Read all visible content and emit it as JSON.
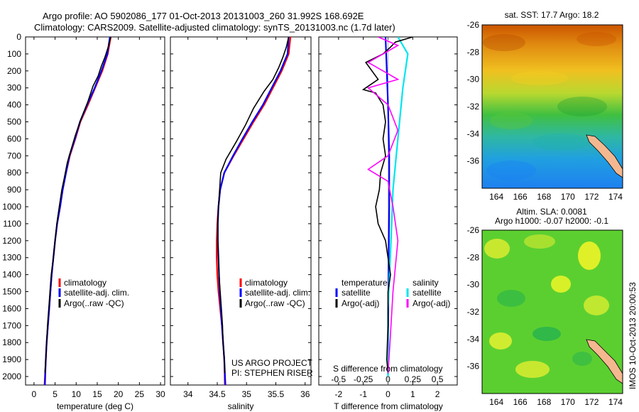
{
  "header": {
    "line1": "Argo profile: AO 5902086_177 01-Oct-2013 20131003_260 31.992S 168.692E",
    "line2": "Climatology: CARS2009. Satellite-adjusted climatology: synTS_20131003.nc (1.7d later)"
  },
  "side_label": "IMOS 10-Oct-2013 20:00:53",
  "credits": {
    "line1": "US ARGO PROJECT",
    "line2": "PI: STEPHEN RISER"
  },
  "colors": {
    "climatology": "#ff0000",
    "satellite": "#0000ff",
    "argo": "#000000",
    "sat_salinity": "#00e5ee",
    "argo_salinity": "#ff00ff"
  },
  "chart_data": [
    {
      "type": "line",
      "xlabel": "temperature (deg C)",
      "ylabel": "",
      "xlim": [
        -2,
        31
      ],
      "ylim": [
        2050,
        0
      ],
      "xticks": [
        "0",
        "5",
        "10",
        "15",
        "20",
        "25",
        "30"
      ],
      "yticks": [
        "0",
        "100",
        "200",
        "300",
        "400",
        "500",
        "600",
        "700",
        "800",
        "900",
        "1000",
        "1100",
        "1200",
        "1300",
        "1400",
        "1500",
        "1600",
        "1700",
        "1800",
        "1900",
        "2000"
      ],
      "legend": [
        "climatology",
        "satellite-adj. clim.",
        "Argo(..raw -QC)"
      ],
      "legend_position": "lower-center",
      "series": [
        {
          "name": "climatology",
          "color": "#ff0000",
          "points": [
            [
              18.2,
              0
            ],
            [
              17.5,
              100
            ],
            [
              16.2,
              200
            ],
            [
              14.5,
              300
            ],
            [
              12.8,
              400
            ],
            [
              11.0,
              500
            ],
            [
              9.8,
              600
            ],
            [
              8.5,
              700
            ],
            [
              7.6,
              800
            ],
            [
              6.8,
              900
            ],
            [
              6.2,
              1000
            ],
            [
              5.5,
              1100
            ],
            [
              5.0,
              1200
            ],
            [
              4.6,
              1300
            ],
            [
              4.2,
              1400
            ],
            [
              3.9,
              1500
            ],
            [
              3.6,
              1600
            ],
            [
              3.3,
              1700
            ],
            [
              3.0,
              1800
            ],
            [
              2.8,
              1900
            ],
            [
              2.5,
              2050
            ]
          ]
        },
        {
          "name": "satellite-adj. clim.",
          "color": "#0000ff",
          "points": [
            [
              18.0,
              0
            ],
            [
              17.4,
              100
            ],
            [
              16.0,
              200
            ],
            [
              14.4,
              300
            ],
            [
              12.6,
              400
            ],
            [
              10.9,
              500
            ],
            [
              9.7,
              600
            ],
            [
              8.4,
              700
            ],
            [
              7.6,
              800
            ],
            [
              6.8,
              900
            ],
            [
              6.2,
              1000
            ],
            [
              5.5,
              1100
            ],
            [
              5.0,
              1200
            ],
            [
              4.6,
              1300
            ],
            [
              4.2,
              1400
            ],
            [
              3.9,
              1500
            ],
            [
              3.6,
              1600
            ],
            [
              3.3,
              1700
            ],
            [
              3.0,
              1800
            ],
            [
              2.8,
              1900
            ],
            [
              2.6,
              2050
            ]
          ]
        },
        {
          "name": "Argo(..raw -QC)",
          "color": "#000000",
          "points": [
            [
              18.2,
              0
            ],
            [
              17.6,
              60
            ],
            [
              16.8,
              120
            ],
            [
              16.0,
              170
            ],
            [
              15.2,
              230
            ],
            [
              14.0,
              290
            ],
            [
              12.8,
              380
            ],
            [
              11.2,
              480
            ],
            [
              9.8,
              580
            ],
            [
              8.6,
              680
            ],
            [
              7.9,
              740
            ],
            [
              7.2,
              830
            ],
            [
              6.6,
              900
            ],
            [
              6.0,
              1000
            ],
            [
              5.4,
              1100
            ],
            [
              5.0,
              1200
            ],
            [
              4.6,
              1300
            ],
            [
              4.1,
              1400
            ],
            [
              3.8,
              1500
            ],
            [
              3.5,
              1600
            ],
            [
              3.2,
              1700
            ],
            [
              3.0,
              1800
            ],
            [
              2.8,
              1900
            ],
            [
              2.6,
              1980
            ]
          ]
        }
      ]
    },
    {
      "type": "line",
      "xlabel": "salinity",
      "xlim": [
        33.7,
        36.1
      ],
      "ylim": [
        2050,
        0
      ],
      "xticks": [
        "34",
        "34.5",
        "35",
        "35.5",
        "36"
      ],
      "legend": [
        "climatology",
        "satellite-adj. clim.",
        "Argo(..raw -QC)"
      ],
      "legend_position": "lower-center",
      "series": [
        {
          "name": "climatology",
          "color": "#ff0000",
          "points": [
            [
              35.75,
              0
            ],
            [
              35.72,
              100
            ],
            [
              35.6,
              200
            ],
            [
              35.45,
              300
            ],
            [
              35.3,
              400
            ],
            [
              35.12,
              500
            ],
            [
              34.95,
              600
            ],
            [
              34.78,
              700
            ],
            [
              34.62,
              800
            ],
            [
              34.55,
              900
            ],
            [
              34.52,
              1000
            ],
            [
              34.5,
              1100
            ],
            [
              34.49,
              1200
            ],
            [
              34.49,
              1300
            ],
            [
              34.5,
              1400
            ],
            [
              34.52,
              1500
            ],
            [
              34.55,
              1600
            ],
            [
              34.58,
              1700
            ],
            [
              34.6,
              1800
            ],
            [
              34.62,
              1900
            ],
            [
              34.63,
              2050
            ]
          ]
        },
        {
          "name": "satellite-adj. clim.",
          "color": "#0000ff",
          "points": [
            [
              35.72,
              0
            ],
            [
              35.7,
              100
            ],
            [
              35.58,
              200
            ],
            [
              35.43,
              300
            ],
            [
              35.28,
              400
            ],
            [
              35.1,
              500
            ],
            [
              34.93,
              600
            ],
            [
              34.77,
              700
            ],
            [
              34.62,
              800
            ],
            [
              34.55,
              900
            ],
            [
              34.52,
              1000
            ],
            [
              34.51,
              1100
            ],
            [
              34.51,
              1200
            ],
            [
              34.52,
              1300
            ],
            [
              34.53,
              1400
            ],
            [
              34.54,
              1500
            ],
            [
              34.56,
              1600
            ],
            [
              34.58,
              1700
            ],
            [
              34.6,
              1800
            ],
            [
              34.62,
              1900
            ],
            [
              34.64,
              2050
            ]
          ]
        },
        {
          "name": "Argo(..raw -QC)",
          "color": "#000000",
          "points": [
            [
              35.72,
              0
            ],
            [
              35.68,
              60
            ],
            [
              35.62,
              120
            ],
            [
              35.55,
              180
            ],
            [
              35.45,
              250
            ],
            [
              35.3,
              320
            ],
            [
              35.12,
              420
            ],
            [
              34.98,
              520
            ],
            [
              34.82,
              620
            ],
            [
              34.65,
              720
            ],
            [
              34.56,
              800
            ],
            [
              34.54,
              900
            ],
            [
              34.52,
              1000
            ],
            [
              34.51,
              1100
            ],
            [
              34.51,
              1200
            ],
            [
              34.52,
              1300
            ],
            [
              34.53,
              1400
            ],
            [
              34.55,
              1500
            ],
            [
              34.57,
              1600
            ],
            [
              34.59,
              1700
            ],
            [
              34.6,
              1800
            ],
            [
              34.62,
              1900
            ],
            [
              34.63,
              1980
            ]
          ]
        }
      ]
    },
    {
      "type": "line",
      "xlabel": "T difference from climatology",
      "top_axis_label": "S difference from climatology",
      "xlim": [
        -2.8,
        2.8
      ],
      "ylim": [
        2050,
        0
      ],
      "xticks": [
        "-2",
        "-1",
        "0",
        "1",
        "2"
      ],
      "top_xticks": [
        "-0.5",
        "-0.25",
        "0",
        "0.25",
        "0.5"
      ],
      "legend": {
        "temperature_title": "temperature",
        "salinity_title": "salinity",
        "satellite": "satellite",
        "argo_t": "Argo(-adj)",
        "argo_s": "Argo(-adj)"
      },
      "series": [
        {
          "name": "satellite",
          "group": "temperature",
          "color": "#0000ff",
          "points": [
            [
              -0.1,
              0
            ],
            [
              -0.05,
              200
            ],
            [
              0,
              400
            ],
            [
              0.05,
              700
            ],
            [
              0.05,
              1000
            ],
            [
              0.02,
              1400
            ],
            [
              0,
              2000
            ]
          ]
        },
        {
          "name": "satellite",
          "group": "salinity",
          "color": "#00e5ee",
          "points": [
            [
              0.1,
              0
            ],
            [
              0.2,
              100
            ],
            [
              0.15,
              300
            ],
            [
              0.1,
              600
            ],
            [
              0.05,
              900
            ],
            [
              0.03,
              1200
            ],
            [
              0,
              1600
            ],
            [
              0,
              2000
            ]
          ]
        },
        {
          "name": "Argo(-adj)",
          "group": "temperature",
          "color": "#000000",
          "points": [
            [
              1.0,
              0
            ],
            [
              0.3,
              30
            ],
            [
              0.1,
              60
            ],
            [
              -0.2,
              100
            ],
            [
              -0.9,
              150
            ],
            [
              -0.4,
              250
            ],
            [
              -1.0,
              310
            ],
            [
              -0.5,
              330
            ],
            [
              -0.2,
              400
            ],
            [
              -0.1,
              500
            ],
            [
              -0.2,
              600
            ],
            [
              -0.1,
              700
            ],
            [
              -0.3,
              800
            ],
            [
              -0.35,
              900
            ],
            [
              -0.5,
              1000
            ],
            [
              -0.4,
              1100
            ],
            [
              -0.1,
              1200
            ],
            [
              0,
              1300
            ],
            [
              0.1,
              1400
            ],
            [
              0,
              1500
            ],
            [
              0,
              1700
            ],
            [
              -0.05,
              1900
            ],
            [
              0,
              1980
            ]
          ]
        },
        {
          "name": "Argo(-adj)",
          "group": "salinity",
          "color": "#ff00ff",
          "points": [
            [
              -0.1,
              0
            ],
            [
              0.1,
              50
            ],
            [
              -0.2,
              150
            ],
            [
              0.1,
              250
            ],
            [
              -0.2,
              300
            ],
            [
              0,
              400
            ],
            [
              0.1,
              550
            ],
            [
              0,
              700
            ],
            [
              -0.2,
              780
            ],
            [
              0,
              850
            ],
            [
              0.05,
              1000
            ],
            [
              0.1,
              1200
            ],
            [
              0.05,
              1500
            ],
            [
              0.02,
              1800
            ],
            [
              0,
              1980
            ]
          ]
        }
      ]
    },
    {
      "type": "heatmap",
      "title": "sat. SST: 17.7 Argo: 18.2",
      "xlim": [
        162.8,
        174.6
      ],
      "ylim": [
        -38.0,
        -26.0
      ],
      "xticks": [
        "164",
        "166",
        "168",
        "170",
        "172",
        "174"
      ],
      "yticks": [
        "-26",
        "-28",
        "-30",
        "-32",
        "-34",
        "-36"
      ],
      "argo_position": [
        168.692,
        -31.992
      ],
      "marker_position": [
        167.9,
        -29.1
      ]
    },
    {
      "type": "heatmap",
      "title": "Altim. SLA: 0.0081",
      "subtitle": "Argo h1000: -0.07 h2000: -0.1",
      "xlim": [
        162.8,
        174.6
      ],
      "ylim": [
        -38.0,
        -26.0
      ],
      "xticks": [
        "164",
        "166",
        "168",
        "170",
        "172",
        "174"
      ],
      "yticks": [
        "-26",
        "-28",
        "-30",
        "-32",
        "-34",
        "-36"
      ],
      "argo_position": [
        168.692,
        -31.992
      ],
      "marker_position": [
        167.9,
        -29.1
      ]
    }
  ]
}
